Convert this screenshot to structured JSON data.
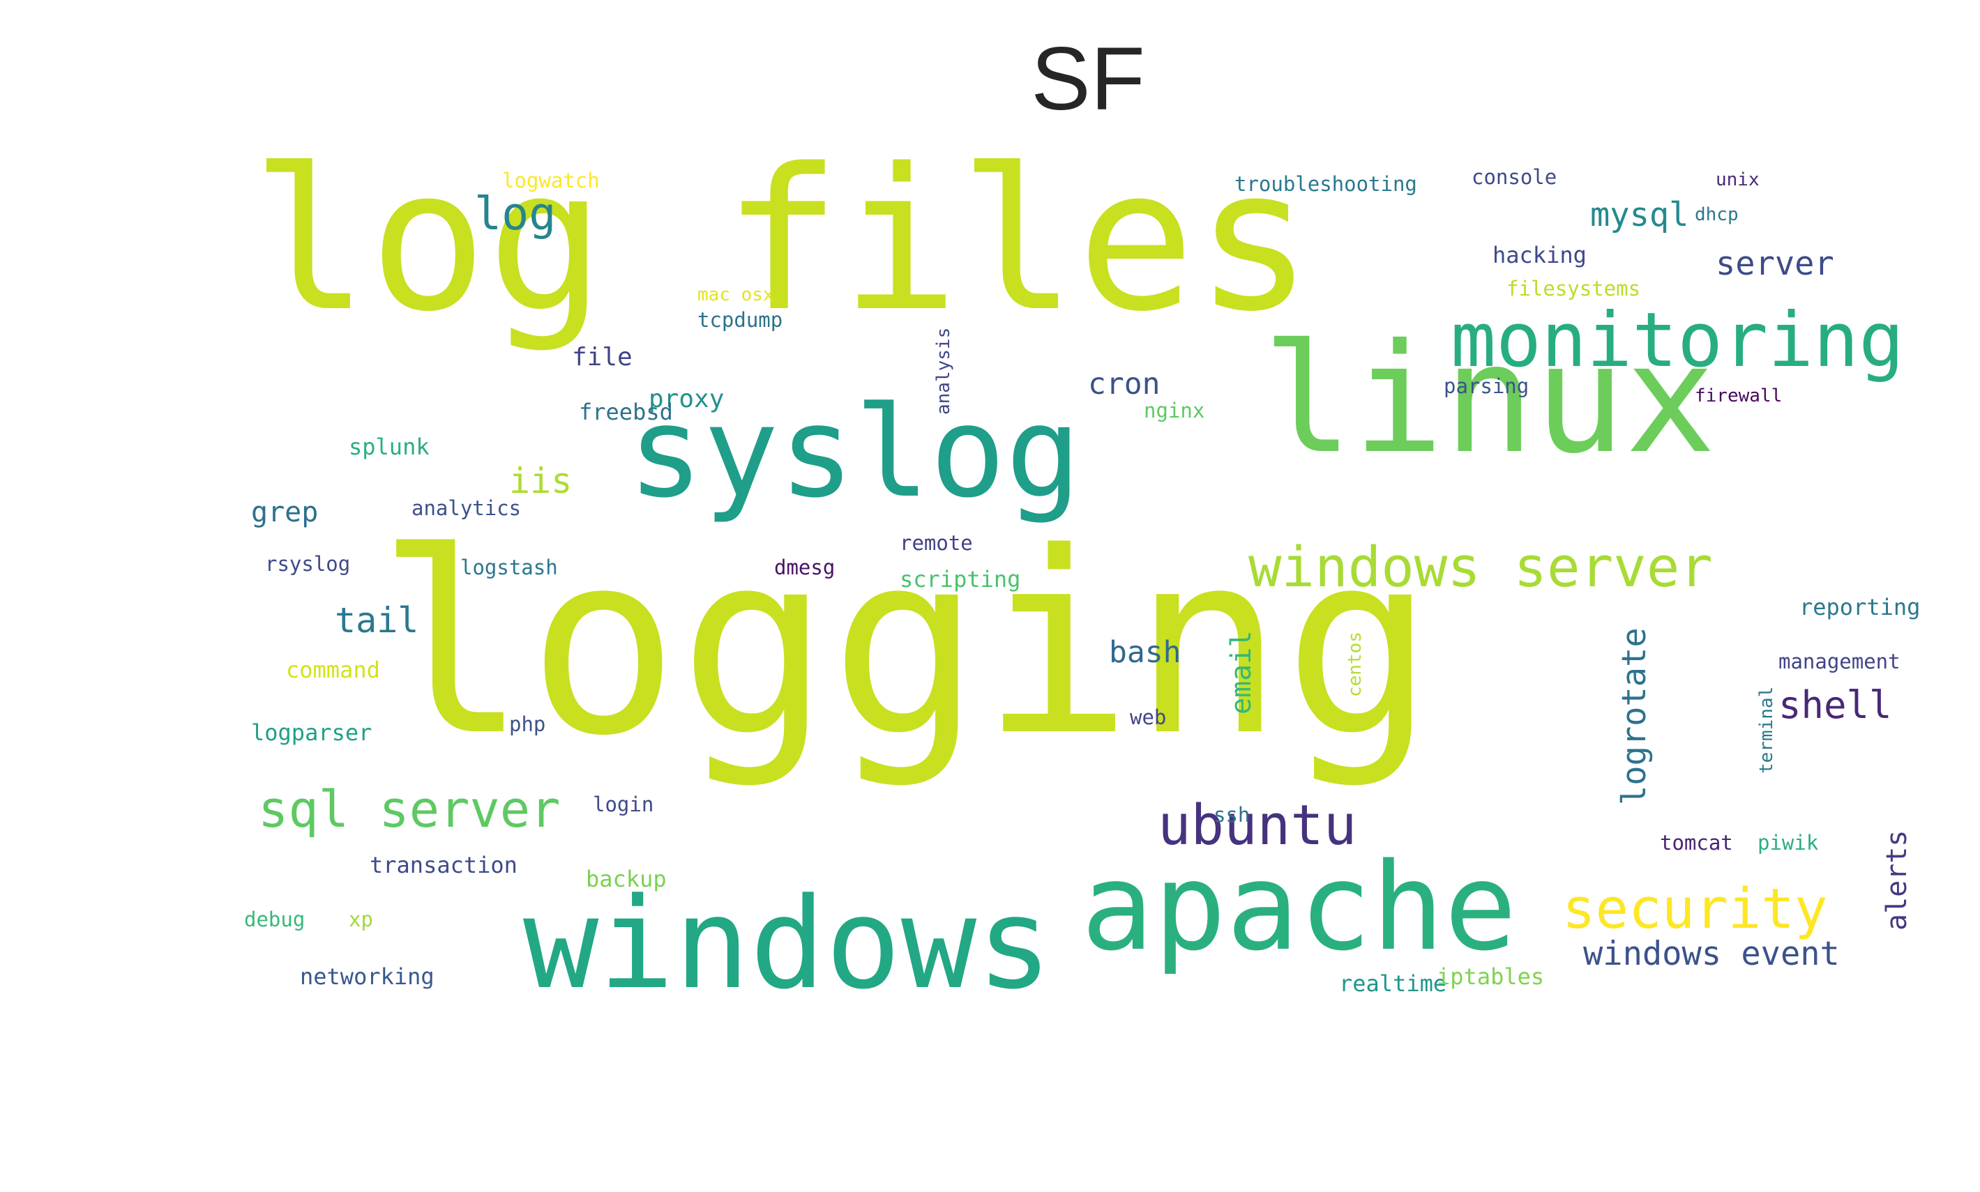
{
  "title": "SF",
  "chart_data": {
    "type": "wordcloud",
    "title": "SF",
    "words": [
      {
        "text": "logging",
        "weight": 1.0,
        "color": "#c8e020",
        "rot": false
      },
      {
        "text": "log files",
        "weight": 0.78,
        "color": "#c8e020",
        "rot": false
      },
      {
        "text": "linux",
        "weight": 0.6,
        "color": "#6ccd5a",
        "rot": false
      },
      {
        "text": "syslog",
        "weight": 0.5,
        "color": "#1f9e89",
        "rot": false
      },
      {
        "text": "windows",
        "weight": 0.5,
        "color": "#22a884",
        "rot": false
      },
      {
        "text": "apache",
        "weight": 0.48,
        "color": "#2ab07f",
        "rot": false
      },
      {
        "text": "monitoring",
        "weight": 0.3,
        "color": "#27ad81",
        "rot": false
      },
      {
        "text": "windows server",
        "weight": 0.22,
        "color": "#a8db34",
        "rot": false
      },
      {
        "text": "security",
        "weight": 0.22,
        "color": "#fde725",
        "rot": false
      },
      {
        "text": "ubuntu",
        "weight": 0.22,
        "color": "#46327e",
        "rot": false
      },
      {
        "text": "sql server",
        "weight": 0.2,
        "color": "#5ec962",
        "rot": false
      },
      {
        "text": "log",
        "weight": 0.18,
        "color": "#25858e",
        "rot": false
      },
      {
        "text": "shell",
        "weight": 0.15,
        "color": "#482878",
        "rot": false
      },
      {
        "text": "tail",
        "weight": 0.14,
        "color": "#2a788e",
        "rot": false
      },
      {
        "text": "iis",
        "weight": 0.14,
        "color": "#addc30",
        "rot": false
      },
      {
        "text": "windows event",
        "weight": 0.13,
        "color": "#3b528b",
        "rot": false
      },
      {
        "text": "server",
        "weight": 0.13,
        "color": "#3e4a89",
        "rot": false
      },
      {
        "text": "mysql",
        "weight": 0.13,
        "color": "#238a8d",
        "rot": false
      },
      {
        "text": "logrotate",
        "weight": 0.13,
        "color": "#2c728e",
        "rot": true
      },
      {
        "text": "bash",
        "weight": 0.12,
        "color": "#31688e",
        "rot": false
      },
      {
        "text": "cron",
        "weight": 0.12,
        "color": "#3b528b",
        "rot": false
      },
      {
        "text": "email",
        "weight": 0.11,
        "color": "#35b779",
        "rot": true
      },
      {
        "text": "grep",
        "weight": 0.11,
        "color": "#2d708e",
        "rot": false
      },
      {
        "text": "alerts",
        "weight": 0.11,
        "color": "#443983",
        "rot": true
      },
      {
        "text": "file",
        "weight": 0.1,
        "color": "#414487",
        "rot": false
      },
      {
        "text": "proxy",
        "weight": 0.1,
        "color": "#21918c",
        "rot": false
      },
      {
        "text": "freebsd",
        "weight": 0.09,
        "color": "#2c728e",
        "rot": false
      },
      {
        "text": "hacking",
        "weight": 0.09,
        "color": "#3e4989",
        "rot": false
      },
      {
        "text": "splunk",
        "weight": 0.09,
        "color": "#29af7f",
        "rot": false
      },
      {
        "text": "logparser",
        "weight": 0.09,
        "color": "#1fa088",
        "rot": false
      },
      {
        "text": "transaction",
        "weight": 0.09,
        "color": "#3e4a89",
        "rot": false
      },
      {
        "text": "networking",
        "weight": 0.09,
        "color": "#38588c",
        "rot": false
      },
      {
        "text": "backup",
        "weight": 0.09,
        "color": "#7ad151",
        "rot": false
      },
      {
        "text": "scripting",
        "weight": 0.09,
        "color": "#4ac16d",
        "rot": false
      },
      {
        "text": "realtime",
        "weight": 0.09,
        "color": "#1f968b",
        "rot": false
      },
      {
        "text": "iptables",
        "weight": 0.09,
        "color": "#7fd34e",
        "rot": false
      },
      {
        "text": "reporting",
        "weight": 0.09,
        "color": "#2a788e",
        "rot": false
      },
      {
        "text": "command",
        "weight": 0.09,
        "color": "#d5e21a",
        "rot": false
      },
      {
        "text": "management",
        "weight": 0.08,
        "color": "#414487",
        "rot": false
      },
      {
        "text": "php",
        "weight": 0.08,
        "color": "#3b528b",
        "rot": false
      },
      {
        "text": "login",
        "weight": 0.08,
        "color": "#3e4a89",
        "rot": false
      },
      {
        "text": "debug",
        "weight": 0.08,
        "color": "#37b878",
        "rot": false
      },
      {
        "text": "xp",
        "weight": 0.08,
        "color": "#a0da39",
        "rot": false
      },
      {
        "text": "web",
        "weight": 0.08,
        "color": "#404688",
        "rot": false
      },
      {
        "text": "ssh",
        "weight": 0.08,
        "color": "#2e6f8e",
        "rot": false
      },
      {
        "text": "tomcat",
        "weight": 0.08,
        "color": "#482475",
        "rot": false
      },
      {
        "text": "piwik",
        "weight": 0.08,
        "color": "#2ab07f",
        "rot": false
      },
      {
        "text": "dmesg",
        "weight": 0.08,
        "color": "#471365",
        "rot": false
      },
      {
        "text": "remote",
        "weight": 0.08,
        "color": "#424086",
        "rot": false
      },
      {
        "text": "nginx",
        "weight": 0.08,
        "color": "#5ec962",
        "rot": false
      },
      {
        "text": "logstash",
        "weight": 0.08,
        "color": "#2a788e",
        "rot": false
      },
      {
        "text": "rsyslog",
        "weight": 0.08,
        "color": "#3e4a89",
        "rot": false
      },
      {
        "text": "analytics",
        "weight": 0.08,
        "color": "#3b528b",
        "rot": false
      },
      {
        "text": "logwatch",
        "weight": 0.08,
        "color": "#fde725",
        "rot": false
      },
      {
        "text": "tcpdump",
        "weight": 0.08,
        "color": "#2c728e",
        "rot": false
      },
      {
        "text": "troubleshooting",
        "weight": 0.08,
        "color": "#2a788e",
        "rot": false
      },
      {
        "text": "console",
        "weight": 0.08,
        "color": "#3e4a89",
        "rot": false
      },
      {
        "text": "filesystems",
        "weight": 0.08,
        "color": "#b8de29",
        "rot": false
      },
      {
        "text": "parsing",
        "weight": 0.08,
        "color": "#3b528b",
        "rot": false
      },
      {
        "text": "firewall",
        "weight": 0.07,
        "color": "#46085c",
        "rot": false
      },
      {
        "text": "dhcp",
        "weight": 0.07,
        "color": "#2a788e",
        "rot": false
      },
      {
        "text": "unix",
        "weight": 0.07,
        "color": "#482878",
        "rot": false
      },
      {
        "text": "mac osx",
        "weight": 0.07,
        "color": "#e5e419",
        "rot": false
      },
      {
        "text": "analysis",
        "weight": 0.07,
        "color": "#404688",
        "rot": true
      },
      {
        "text": "centos",
        "weight": 0.07,
        "color": "#b5de2b",
        "rot": true
      },
      {
        "text": "terminal",
        "weight": 0.07,
        "color": "#2a788e",
        "rot": true
      }
    ]
  }
}
